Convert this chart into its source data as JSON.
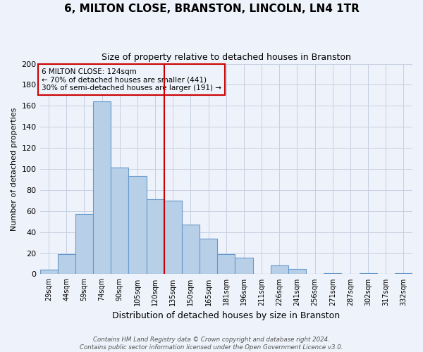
{
  "title": "6, MILTON CLOSE, BRANSTON, LINCOLN, LN4 1TR",
  "subtitle": "Size of property relative to detached houses in Branston",
  "xlabel": "Distribution of detached houses by size in Branston",
  "ylabel": "Number of detached properties",
  "bin_labels": [
    "29sqm",
    "44sqm",
    "59sqm",
    "74sqm",
    "90sqm",
    "105sqm",
    "120sqm",
    "135sqm",
    "150sqm",
    "165sqm",
    "181sqm",
    "196sqm",
    "211sqm",
    "226sqm",
    "241sqm",
    "256sqm",
    "271sqm",
    "287sqm",
    "302sqm",
    "317sqm",
    "332sqm"
  ],
  "bin_values": [
    4,
    19,
    57,
    164,
    101,
    93,
    71,
    70,
    47,
    34,
    19,
    16,
    0,
    8,
    5,
    0,
    1,
    0,
    1,
    0,
    1
  ],
  "bar_color": "#b8cfe8",
  "bar_edge_color": "#6699cc",
  "vline_x_index": 6.5,
  "vline_color": "#cc0000",
  "annotation_title": "6 MILTON CLOSE: 124sqm",
  "annotation_line1": "← 70% of detached houses are smaller (441)",
  "annotation_line2": "30% of semi-detached houses are larger (191) →",
  "annotation_box_color": "#cc0000",
  "ylim": [
    0,
    200
  ],
  "yticks": [
    0,
    20,
    40,
    60,
    80,
    100,
    120,
    140,
    160,
    180,
    200
  ],
  "footnote1": "Contains HM Land Registry data © Crown copyright and database right 2024.",
  "footnote2": "Contains public sector information licensed under the Open Government Licence v3.0.",
  "bg_color": "#eef2fa",
  "grid_color": "#c5cfe0"
}
